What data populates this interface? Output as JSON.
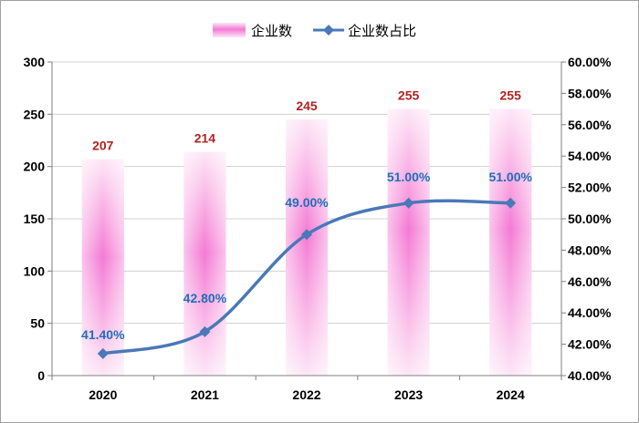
{
  "chart_data": {
    "type": "bar+line",
    "categories": [
      "2020",
      "2021",
      "2022",
      "2023",
      "2024"
    ],
    "series": [
      {
        "name": "企业数",
        "type": "bar",
        "axis": "left",
        "values": [
          207,
          214,
          245,
          255,
          255
        ],
        "labels": [
          "207",
          "214",
          "245",
          "255",
          "255"
        ]
      },
      {
        "name": "企业数占比",
        "type": "line",
        "axis": "right",
        "values": [
          41.4,
          42.8,
          49.0,
          51.0,
          51.0
        ],
        "labels": [
          "41.40%",
          "42.80%",
          "49.00%",
          "51.00%",
          "51.00%"
        ]
      }
    ],
    "y_left": {
      "range": [
        0,
        300
      ],
      "ticks": [
        "0",
        "50",
        "100",
        "150",
        "200",
        "250",
        "300"
      ]
    },
    "y_right": {
      "range": [
        40,
        60
      ],
      "ticks": [
        "40.00%",
        "42.00%",
        "44.00%",
        "46.00%",
        "48.00%",
        "50.00%",
        "52.00%",
        "54.00%",
        "56.00%",
        "58.00%",
        "60.00%"
      ]
    },
    "grid": true,
    "legend_position": "top",
    "colors": {
      "bar": "#f47ad4",
      "bar_light": "#fde6f6",
      "line": "#4a78b8",
      "bar_label": "#b22222",
      "line_label": "#1f6fb8",
      "grid": "#d0d0d0"
    }
  }
}
